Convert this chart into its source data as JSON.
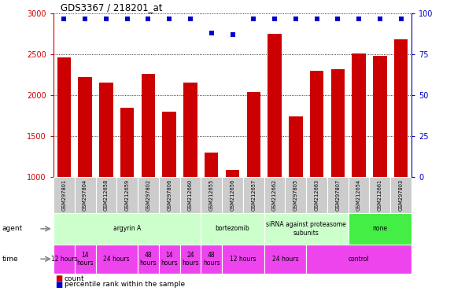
{
  "title": "GDS3367 / 218201_at",
  "samples": [
    "GSM297801",
    "GSM297804",
    "GSM212658",
    "GSM212659",
    "GSM297802",
    "GSM297806",
    "GSM212660",
    "GSM212655",
    "GSM212656",
    "GSM212657",
    "GSM212662",
    "GSM297805",
    "GSM212663",
    "GSM297807",
    "GSM212654",
    "GSM212661",
    "GSM297803"
  ],
  "counts": [
    2460,
    2220,
    2150,
    1850,
    2260,
    1800,
    2150,
    1300,
    1080,
    2040,
    2750,
    1740,
    2300,
    2320,
    2510,
    2480,
    2680
  ],
  "percentiles": [
    97,
    97,
    97,
    97,
    97,
    97,
    97,
    88,
    87,
    97,
    97,
    97,
    97,
    97,
    97,
    97,
    97
  ],
  "bar_color": "#cc0000",
  "dot_color": "#0000cc",
  "ylim_left": [
    1000,
    3000
  ],
  "ylim_right": [
    0,
    100
  ],
  "yticks_left": [
    1000,
    1500,
    2000,
    2500,
    3000
  ],
  "yticks_right": [
    0,
    25,
    50,
    75,
    100
  ],
  "time_color": "#ee44ee",
  "bg_color": "#cccccc",
  "agent_light_color": "#ccffcc",
  "agent_bright_color": "#44ee44",
  "white": "#ffffff",
  "agent_data": [
    [
      0,
      6,
      "argyrin A",
      "#ccffcc"
    ],
    [
      7,
      9,
      "bortezomib",
      "#ccffcc"
    ],
    [
      10,
      13,
      "siRNA against proteasome\nsubunits",
      "#ccffcc"
    ],
    [
      14,
      16,
      "none",
      "#44ee44"
    ]
  ],
  "time_data": [
    [
      0,
      0,
      "12 hours"
    ],
    [
      1,
      1,
      "14\nhours"
    ],
    [
      2,
      3,
      "24 hours"
    ],
    [
      4,
      4,
      "48\nhours"
    ],
    [
      5,
      5,
      "14\nhours"
    ],
    [
      6,
      6,
      "24\nhours"
    ],
    [
      7,
      7,
      "48\nhours"
    ],
    [
      8,
      9,
      "12 hours"
    ],
    [
      10,
      11,
      "24 hours"
    ],
    [
      12,
      16,
      "control"
    ]
  ],
  "fig_width": 5.91,
  "fig_height": 3.84,
  "dpi": 100
}
